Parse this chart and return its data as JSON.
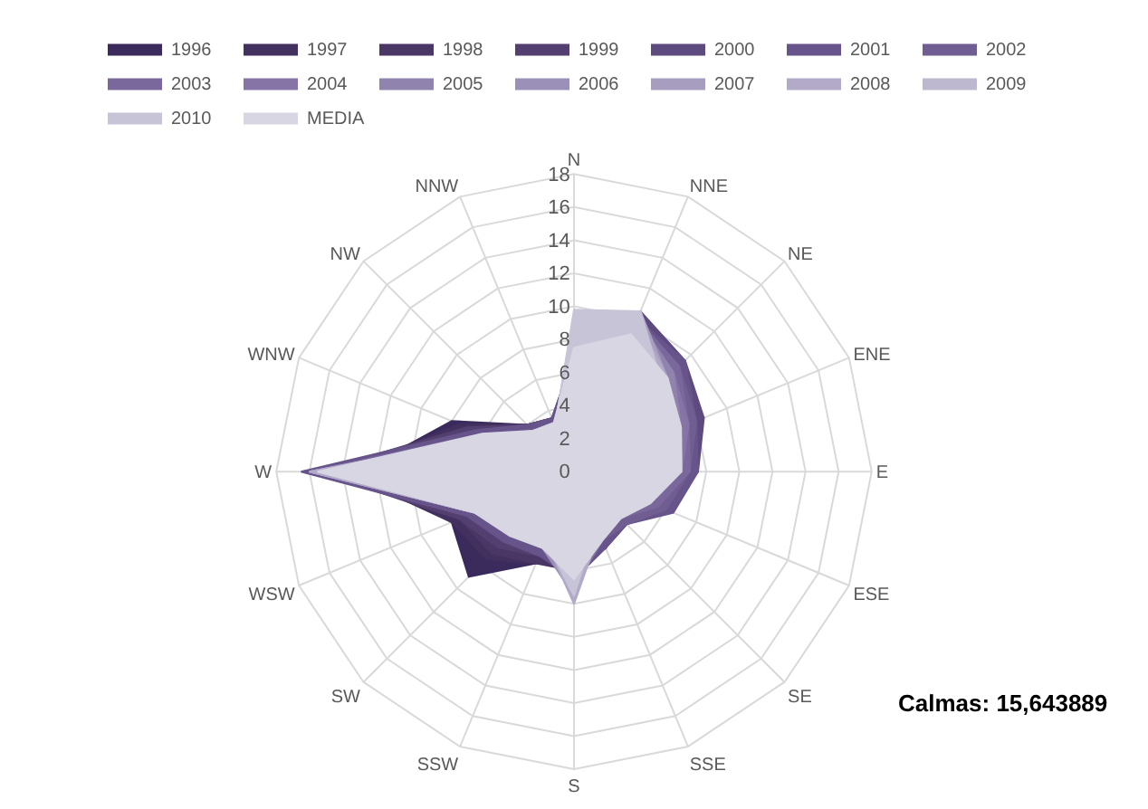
{
  "chart_data": {
    "type": "radar",
    "categories": [
      "N",
      "NNE",
      "NE",
      "ENE",
      "E",
      "ESE",
      "SE",
      "SSE",
      "S",
      "SSW",
      "SW",
      "WSW",
      "W",
      "WNW",
      "NW",
      "NNW"
    ],
    "ylim": [
      0,
      18
    ],
    "yticks": [
      0,
      2,
      4,
      6,
      8,
      10,
      12,
      14,
      16,
      18
    ],
    "grid": true,
    "legend": "top",
    "annotations": [
      "Calmas: 15,643889"
    ],
    "series": [
      {
        "name": "1996",
        "color": "#3b2a5c",
        "values": [
          5,
          7,
          7,
          6.5,
          6,
          5,
          4,
          5,
          5,
          6,
          9,
          8,
          13,
          8,
          4,
          3
        ]
      },
      {
        "name": "1997",
        "color": "#42305f",
        "values": [
          5,
          8,
          8,
          7,
          6.5,
          5.5,
          4,
          5,
          5.5,
          6,
          7.5,
          8,
          14,
          7.5,
          4,
          3
        ]
      },
      {
        "name": "1998",
        "color": "#4a3766",
        "values": [
          6,
          8.5,
          8.5,
          7.5,
          6.5,
          5,
          4,
          5,
          6,
          6,
          7,
          7.5,
          15,
          7,
          4,
          3.5
        ]
      },
      {
        "name": "1999",
        "color": "#534070",
        "values": [
          6,
          9,
          9,
          8,
          7,
          5,
          4,
          5,
          6,
          5.5,
          6.5,
          7.5,
          15.5,
          7,
          4,
          3.5
        ]
      },
      {
        "name": "2000",
        "color": "#5d4a7e",
        "values": [
          7,
          10.5,
          9.5,
          8.5,
          7.5,
          6,
          4.5,
          5,
          6,
          5.5,
          6,
          7,
          16,
          6.5,
          4,
          3.5
        ]
      },
      {
        "name": "2001",
        "color": "#67548a",
        "values": [
          7,
          10,
          9.5,
          8,
          7.5,
          6.5,
          4.5,
          5,
          6.5,
          5.5,
          6,
          7,
          16.5,
          6.5,
          4,
          3.5
        ]
      },
      {
        "name": "2002",
        "color": "#705e92",
        "values": [
          7.5,
          10,
          9,
          8,
          7,
          6,
          4.5,
          4.5,
          6.5,
          5,
          5.5,
          6.5,
          16,
          6,
          3.5,
          3
        ]
      },
      {
        "name": "2003",
        "color": "#7a689c",
        "values": [
          8,
          10,
          9,
          7.5,
          7,
          5.5,
          4,
          4.5,
          7,
          5,
          5.5,
          6.5,
          16,
          6,
          3.5,
          3
        ]
      },
      {
        "name": "2004",
        "color": "#8574a5",
        "values": [
          8,
          10,
          8.5,
          7.5,
          6.5,
          5,
          4,
          4.5,
          7,
          5,
          5,
          6.5,
          15.5,
          5.5,
          3.5,
          3
        ]
      },
      {
        "name": "2005",
        "color": "#9083ae",
        "values": [
          8.5,
          10,
          8.5,
          7,
          6.5,
          5,
          4,
          4,
          7,
          5,
          5,
          6.5,
          15.5,
          5.5,
          3.5,
          3
        ]
      },
      {
        "name": "2006",
        "color": "#9b90b7",
        "values": [
          9,
          10,
          8,
          7,
          6.5,
          4.5,
          3.5,
          4,
          7.5,
          5,
          5,
          6.5,
          16,
          5.5,
          3.5,
          3
        ]
      },
      {
        "name": "2007",
        "color": "#a69dbf",
        "values": [
          9,
          10.5,
          8,
          7,
          6,
          4.5,
          3.5,
          4,
          7.5,
          4.5,
          5,
          6.5,
          16,
          5.5,
          3.5,
          3
        ]
      },
      {
        "name": "2008",
        "color": "#b2aac8",
        "values": [
          9.5,
          10,
          8,
          6.5,
          6,
          4.5,
          3.5,
          4,
          8,
          4.5,
          5,
          6.5,
          16,
          5.5,
          3,
          3
        ]
      },
      {
        "name": "2009",
        "color": "#bdb7d0",
        "values": [
          9.5,
          10,
          7.5,
          6.5,
          6,
          4.5,
          3.5,
          3.5,
          7.5,
          4.5,
          4.5,
          6,
          15.5,
          5,
          3,
          3
        ]
      },
      {
        "name": "2010",
        "color": "#c8c4d8",
        "values": [
          9.8,
          10.5,
          7.5,
          6.5,
          6,
          4,
          3.5,
          3.5,
          7.5,
          4.5,
          4.5,
          6,
          15.5,
          5,
          3,
          3
        ]
      },
      {
        "name": "MEDIA",
        "color": "#d8d6e2",
        "values": [
          7.5,
          9,
          8,
          7,
          6.5,
          5,
          4,
          4.5,
          6.5,
          5,
          5.5,
          6.5,
          15.5,
          6,
          3.5,
          3.2
        ]
      }
    ]
  }
}
